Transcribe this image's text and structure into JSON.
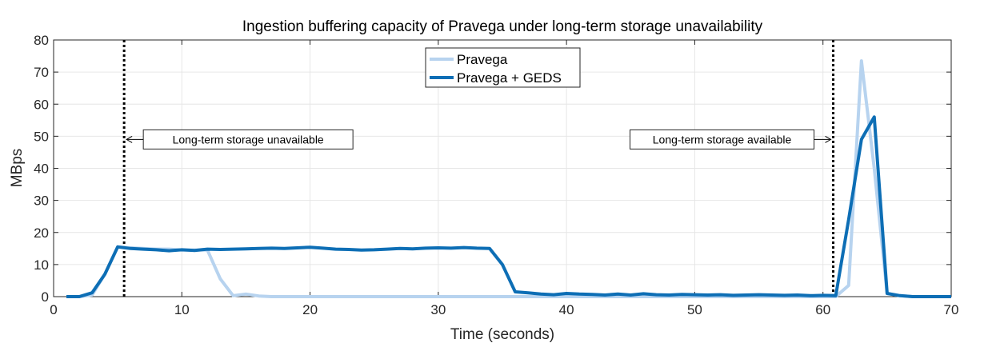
{
  "chart_data": {
    "type": "line",
    "title": "Ingestion buffering capacity of Pravega under long-term storage unavailability",
    "xlabel": "Time (seconds)",
    "ylabel": "MBps",
    "xlim": [
      0,
      70
    ],
    "ylim": [
      0,
      80
    ],
    "xticks": [
      0,
      10,
      20,
      30,
      40,
      50,
      60,
      70
    ],
    "yticks": [
      0,
      10,
      20,
      30,
      40,
      50,
      60,
      70,
      80
    ],
    "grid": true,
    "legend_position": "top-center",
    "series": [
      {
        "name": "Pravega",
        "color": "#b7d3ef",
        "x": [
          1,
          2,
          3,
          4,
          5,
          6,
          7,
          8,
          9,
          10,
          11,
          12,
          13,
          14,
          15,
          16,
          17,
          18,
          19,
          20,
          21,
          22,
          23,
          24,
          25,
          26,
          27,
          28,
          29,
          30,
          31,
          32,
          33,
          34,
          35,
          36,
          37,
          38,
          39,
          40,
          41,
          42,
          43,
          44,
          45,
          46,
          47,
          48,
          49,
          50,
          51,
          52,
          53,
          54,
          55,
          56,
          57,
          58,
          59,
          60,
          61,
          62,
          63,
          64,
          65,
          66,
          67,
          68,
          69,
          70
        ],
        "values": [
          0,
          0,
          0.5,
          7,
          15.5,
          15.2,
          15,
          14.8,
          14.8,
          14.5,
          14.5,
          14.5,
          5.5,
          0.3,
          0.8,
          0.2,
          0,
          0,
          0,
          0,
          0,
          0,
          0,
          0,
          0,
          0,
          0,
          0,
          0,
          0,
          0,
          0,
          0,
          0,
          0,
          0,
          0,
          0,
          0,
          0,
          0,
          0,
          0,
          0,
          0,
          0,
          0,
          0,
          0,
          0,
          0,
          0,
          0,
          0,
          0,
          0,
          0,
          0,
          0,
          0,
          0,
          3.5,
          73.5,
          40,
          1,
          0.3,
          0,
          0,
          0,
          0
        ]
      },
      {
        "name": "Pravega + GEDS",
        "color": "#0d6eb5",
        "x": [
          1,
          2,
          3,
          4,
          5,
          6,
          7,
          8,
          9,
          10,
          11,
          12,
          13,
          14,
          15,
          16,
          17,
          18,
          19,
          20,
          21,
          22,
          23,
          24,
          25,
          26,
          27,
          28,
          29,
          30,
          31,
          32,
          33,
          34,
          35,
          36,
          37,
          38,
          39,
          40,
          41,
          42,
          43,
          44,
          45,
          46,
          47,
          48,
          49,
          50,
          51,
          52,
          53,
          54,
          55,
          56,
          57,
          58,
          59,
          60,
          61,
          62,
          63,
          64,
          65,
          66,
          67,
          68,
          69,
          70
        ],
        "values": [
          0,
          0,
          1.2,
          7,
          15.5,
          15,
          14.8,
          14.6,
          14.3,
          14.6,
          14.4,
          14.8,
          14.7,
          14.8,
          14.9,
          15,
          15.1,
          15,
          15.2,
          15.4,
          15.1,
          14.8,
          14.7,
          14.5,
          14.6,
          14.8,
          15,
          14.9,
          15.1,
          15.2,
          15.1,
          15.3,
          15.1,
          15,
          10,
          1.5,
          1.2,
          0.8,
          0.6,
          1,
          0.8,
          0.7,
          0.5,
          0.8,
          0.5,
          0.9,
          0.6,
          0.5,
          0.7,
          0.6,
          0.5,
          0.6,
          0.4,
          0.5,
          0.6,
          0.5,
          0.4,
          0.5,
          0.3,
          0.4,
          0.3,
          24,
          49,
          56,
          1,
          0.3,
          0,
          0,
          0,
          0
        ]
      }
    ],
    "markers": [
      {
        "x": 5.5,
        "label": "Long-term storage unavailable",
        "arrow": "left",
        "label_y": 49
      },
      {
        "x": 60.8,
        "label": "Long-term storage available",
        "arrow": "right",
        "label_y": 49
      }
    ]
  }
}
